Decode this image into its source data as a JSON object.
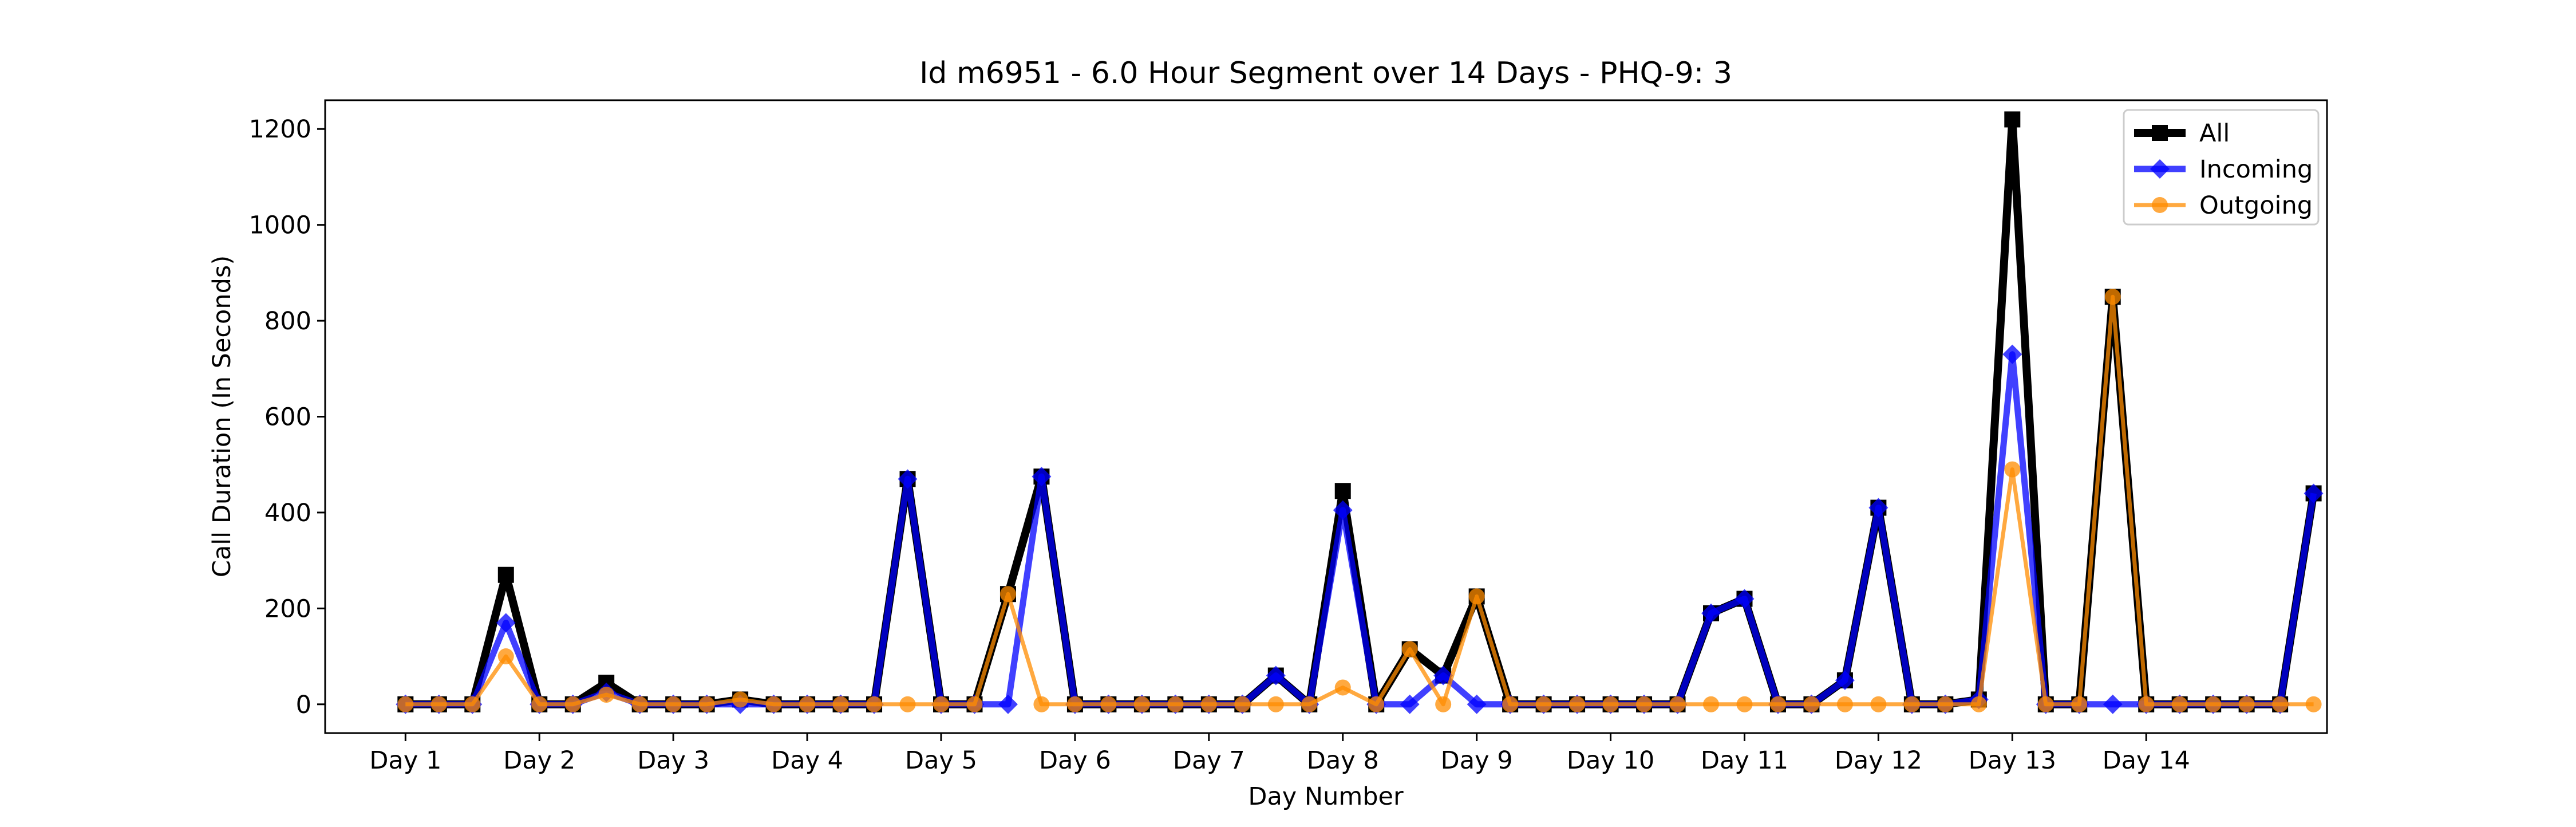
{
  "chart_data": {
    "type": "line",
    "title": "Id m6951 - 6.0 Hour Segment over 14 Days - PHQ-9: 3",
    "xlabel": "Day Number",
    "ylabel": "Call Duration (In Seconds)",
    "ylim": [
      -60,
      1260
    ],
    "xlim": [
      -2.4,
      57.4
    ],
    "yticks": [
      0,
      200,
      400,
      600,
      800,
      1000,
      1200
    ],
    "xtick_positions": [
      0,
      4,
      8,
      12,
      16,
      20,
      24,
      28,
      32,
      36,
      40,
      44,
      48,
      52
    ],
    "xtick_labels": [
      "Day 1",
      "Day 2",
      "Day 3",
      "Day 4",
      "Day 5",
      "Day 6",
      "Day 7",
      "Day 8",
      "Day 9",
      "Day 10",
      "Day 11",
      "Day 12",
      "Day 13",
      "Day 14"
    ],
    "grid": false,
    "legend_position": "top-right",
    "series": [
      {
        "name": "All",
        "color": "#000000",
        "marker": "square",
        "values": [
          0,
          0,
          0,
          270,
          0,
          0,
          45,
          0,
          0,
          0,
          10,
          0,
          0,
          0,
          0,
          470,
          0,
          0,
          230,
          475,
          0,
          0,
          0,
          0,
          0,
          0,
          60,
          0,
          445,
          0,
          115,
          60,
          225,
          0,
          0,
          0,
          0,
          0,
          0,
          190,
          220,
          0,
          0,
          50,
          410,
          0,
          0,
          10,
          1220,
          0,
          0,
          850,
          0,
          0,
          0,
          0,
          0,
          440
        ]
      },
      {
        "name": "Incoming",
        "color": "#0000ff",
        "marker": "diamond",
        "values": [
          0,
          0,
          0,
          170,
          0,
          0,
          25,
          0,
          0,
          0,
          0,
          0,
          0,
          0,
          0,
          470,
          0,
          0,
          0,
          475,
          0,
          0,
          0,
          0,
          0,
          0,
          60,
          0,
          405,
          0,
          0,
          60,
          0,
          0,
          0,
          0,
          0,
          0,
          0,
          190,
          220,
          0,
          0,
          50,
          410,
          0,
          0,
          10,
          730,
          0,
          0,
          0,
          0,
          0,
          0,
          0,
          0,
          440
        ]
      },
      {
        "name": "Outgoing",
        "color": "#ff8c00",
        "marker": "circle",
        "values": [
          0,
          0,
          0,
          100,
          0,
          0,
          20,
          0,
          0,
          0,
          10,
          0,
          0,
          0,
          0,
          0,
          0,
          0,
          230,
          0,
          0,
          0,
          0,
          0,
          0,
          0,
          0,
          0,
          35,
          0,
          115,
          0,
          225,
          0,
          0,
          0,
          0,
          0,
          0,
          0,
          0,
          0,
          0,
          0,
          0,
          0,
          0,
          0,
          490,
          0,
          0,
          850,
          0,
          0,
          0,
          0,
          0,
          0
        ]
      }
    ]
  }
}
